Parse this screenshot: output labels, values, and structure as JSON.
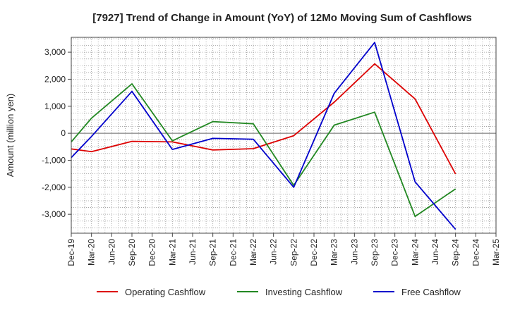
{
  "chart_data": {
    "type": "line",
    "title": "[7927]  Trend of Change in Amount (YoY) of 12Mo Moving Sum of Cashflows",
    "xlabel": "",
    "ylabel": "Amount (million yen)",
    "ylim": [
      -3700,
      3550
    ],
    "yticks": [
      3000,
      2000,
      1000,
      0,
      -1000,
      -2000,
      -3000
    ],
    "ytick_labels": [
      "3,000",
      "2,000",
      "1,000",
      "0",
      "-1,000",
      "-2,000",
      "-3,000"
    ],
    "categories": [
      "Dec-19",
      "Mar-20",
      "Jun-20",
      "Sep-20",
      "Dec-20",
      "Mar-21",
      "Jun-21",
      "Sep-21",
      "Dec-21",
      "Mar-22",
      "Jun-22",
      "Sep-22",
      "Dec-22",
      "Mar-23",
      "Jun-23",
      "Sep-23",
      "Dec-23",
      "Mar-24",
      "Jun-24",
      "Sep-24",
      "Dec-24",
      "Mar-25"
    ],
    "grid": true,
    "legend_position": "bottom",
    "series": [
      {
        "name": "Operating Cashflow",
        "color": "#dd0000",
        "points": [
          [
            0,
            -580
          ],
          [
            1,
            -680
          ],
          [
            3,
            -300
          ],
          [
            5,
            -320
          ],
          [
            7,
            -620
          ],
          [
            9,
            -570
          ],
          [
            11,
            -90
          ],
          [
            13,
            1150
          ],
          [
            15,
            2570
          ],
          [
            17,
            1270
          ],
          [
            19,
            -1510
          ]
        ]
      },
      {
        "name": "Investing Cashflow",
        "color": "#228822",
        "points": [
          [
            0,
            -320
          ],
          [
            1,
            560
          ],
          [
            3,
            1830
          ],
          [
            5,
            -280
          ],
          [
            7,
            430
          ],
          [
            9,
            350
          ],
          [
            11,
            -1930
          ],
          [
            13,
            300
          ],
          [
            15,
            780
          ],
          [
            17,
            -3080
          ],
          [
            19,
            -2060
          ]
        ]
      },
      {
        "name": "Free Cashflow",
        "color": "#0000cc",
        "points": [
          [
            0,
            -900
          ],
          [
            1,
            -120
          ],
          [
            3,
            1550
          ],
          [
            5,
            -600
          ],
          [
            7,
            -190
          ],
          [
            9,
            -220
          ],
          [
            11,
            -2000
          ],
          [
            13,
            1480
          ],
          [
            15,
            3360
          ],
          [
            17,
            -1800
          ],
          [
            19,
            -3560
          ]
        ]
      }
    ]
  }
}
